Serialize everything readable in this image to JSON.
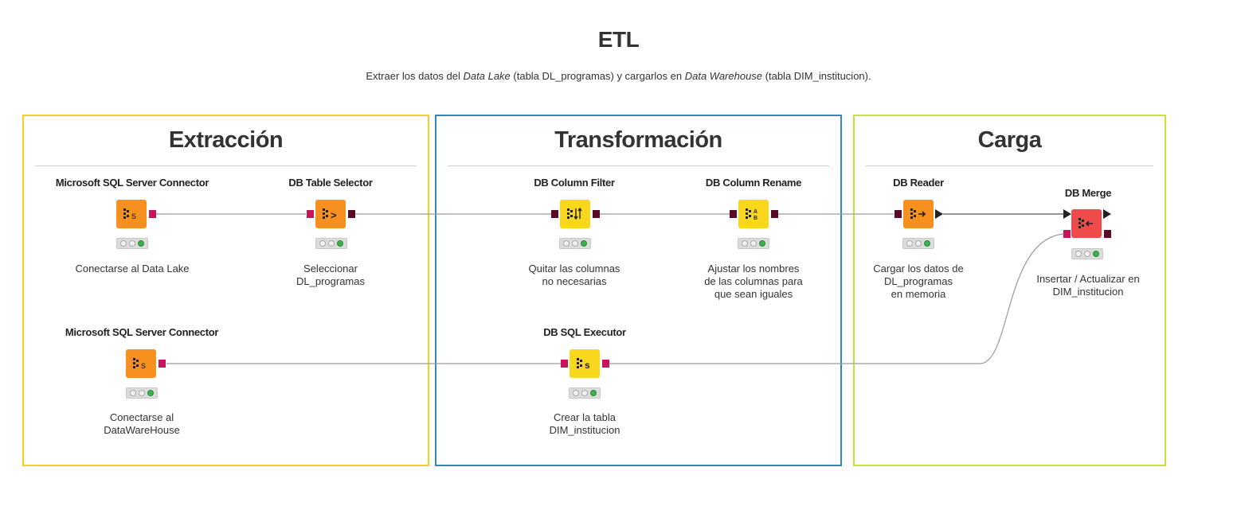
{
  "title": "ETL",
  "subtitle": {
    "p1": "Extraer los datos del ",
    "i1": "Data Lake",
    "p2": " (tabla DL_programas) y cargarlos en ",
    "i2": "Data Warehouse",
    "p3": " (tabla DIM_institucion)."
  },
  "sections": [
    {
      "title": "Extracción",
      "color": "#f2d024"
    },
    {
      "title": "Transformación",
      "color": "#2f8ab5"
    },
    {
      "title": "Carga",
      "color": "#c6e23a"
    }
  ],
  "nodes": [
    {
      "key": "connector_lake",
      "title": "Microsoft SQL Server Connector",
      "desc": "Conectarse al Data Lake",
      "icon": "database-connector-icon",
      "glyph": "s"
    },
    {
      "key": "table_selector",
      "title": "DB Table Selector",
      "desc": "Seleccionar\nDL_programas",
      "icon": "database-table-selector-icon",
      "glyph": ">"
    },
    {
      "key": "column_filter",
      "title": "DB Column Filter",
      "desc": "Quitar las columnas\nno necesarias",
      "icon": "database-column-filter-icon",
      "glyph": "↕"
    },
    {
      "key": "column_rename",
      "title": "DB Column Rename",
      "desc": "Ajustar los nombres\nde las columnas para\nque sean iguales",
      "icon": "database-column-rename-icon",
      "glyph": "AB"
    },
    {
      "key": "reader",
      "title": "DB Reader",
      "desc": "Cargar los datos de\nDL_programas\nen memoria",
      "icon": "database-reader-icon",
      "glyph": "→"
    },
    {
      "key": "merge",
      "title": "DB Merge",
      "desc": "Insertar / Actualizar en\nDIM_institucion",
      "icon": "database-merge-icon",
      "glyph": "←"
    },
    {
      "key": "connector_dw",
      "title": "Microsoft SQL Server Connector",
      "desc": "Conectarse al\nDataWareHouse",
      "icon": "database-connector-icon",
      "glyph": "s"
    },
    {
      "key": "sql_executor",
      "title": "DB SQL Executor",
      "desc": "Crear la tabla\nDIM_institucion",
      "icon": "database-sql-executor-icon",
      "glyph": "s"
    }
  ],
  "colors": {
    "orange_node": "#f7901e",
    "yellow_node": "#f9d71c",
    "red_node": "#ef4b4b",
    "db_port": "#c8145a",
    "data_port": "#5a0a26",
    "connection_line": "#9a9a9a"
  }
}
